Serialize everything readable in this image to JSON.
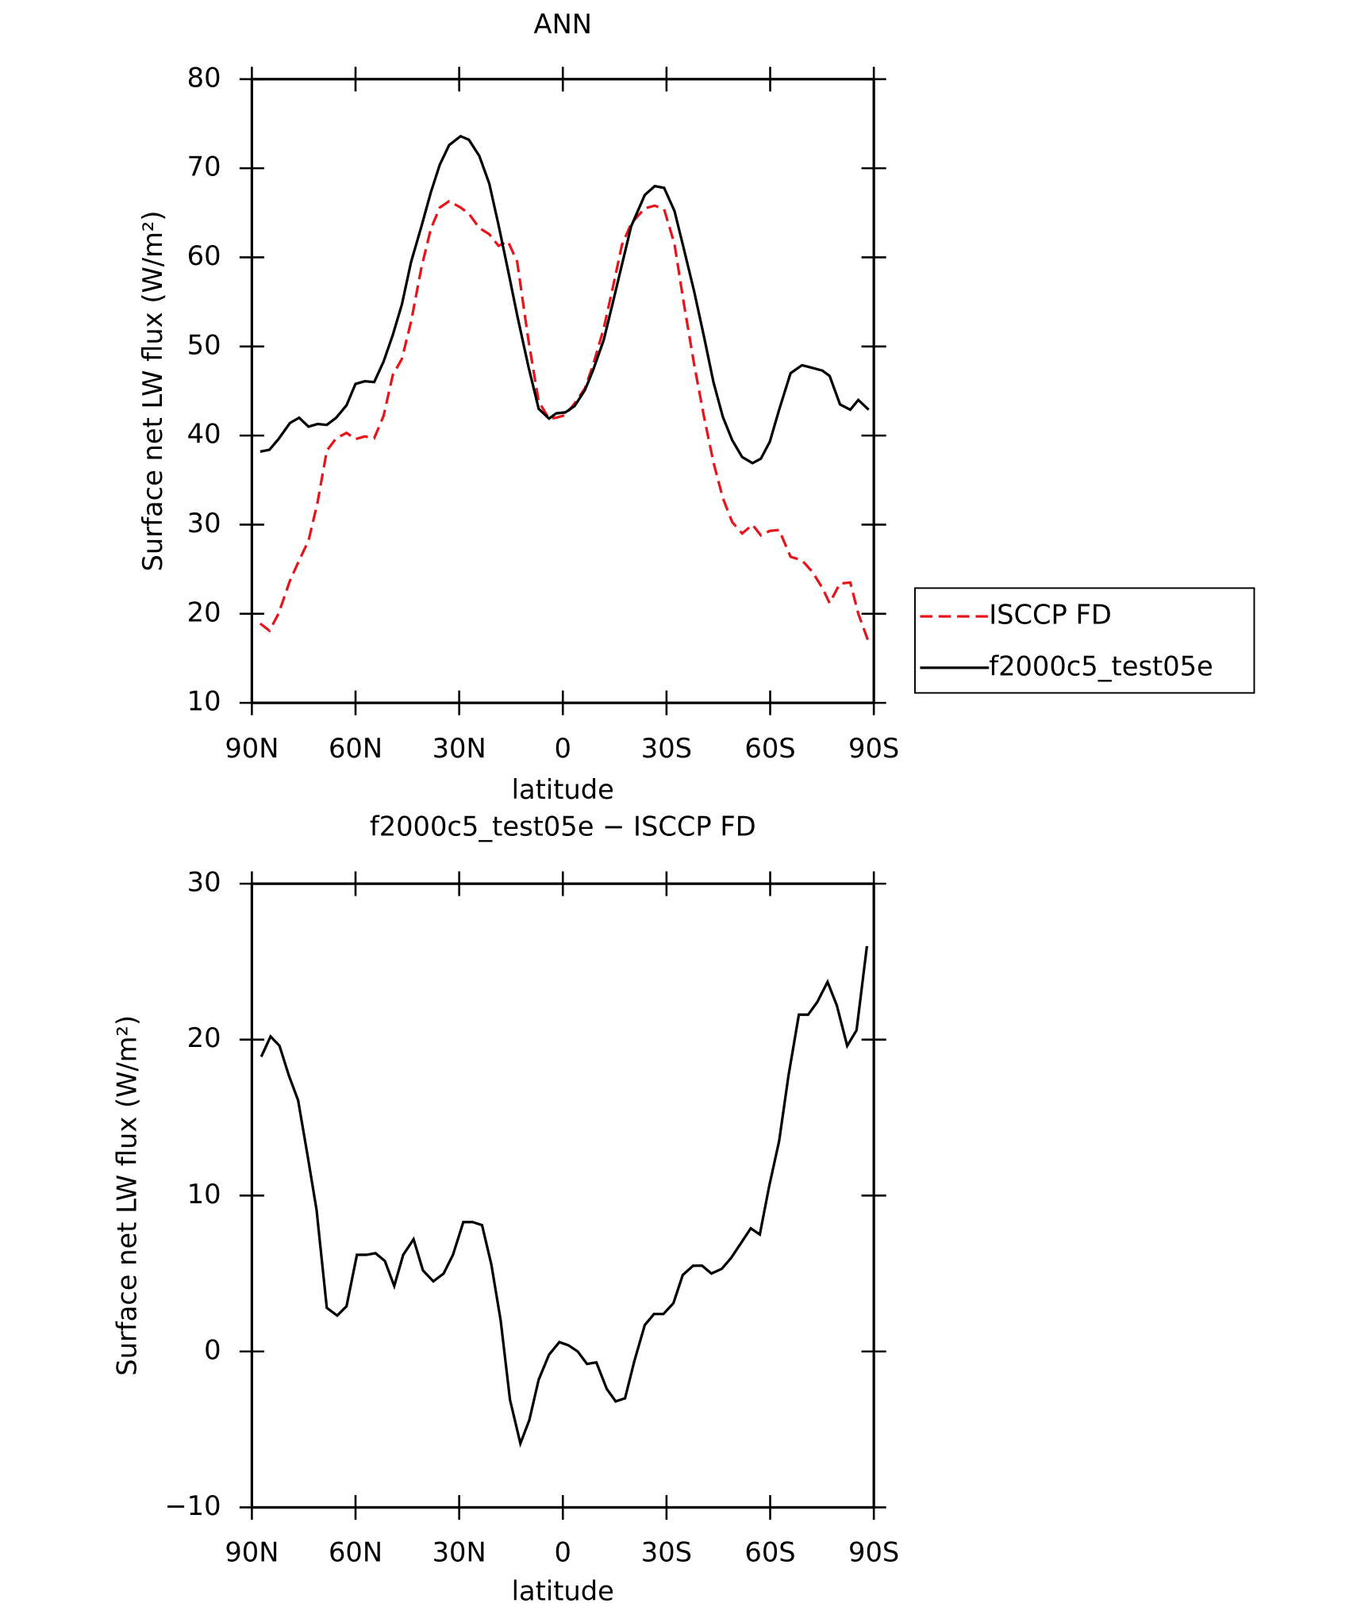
{
  "chart_data": [
    {
      "type": "line",
      "title": "ANN",
      "xlabel": "latitude",
      "ylabel": "Surface net LW flux (W/m²)",
      "xlim": [
        90,
        -90
      ],
      "ylim": [
        10,
        80
      ],
      "xticks": [
        {
          "value": 90,
          "label": "90N"
        },
        {
          "value": 60,
          "label": "60N"
        },
        {
          "value": 30,
          "label": "30N"
        },
        0,
        {
          "value": -30,
          "label": "30S"
        },
        {
          "value": -60,
          "label": "60S"
        },
        {
          "value": -90,
          "label": "90S"
        }
      ],
      "yticks": [
        10,
        20,
        30,
        40,
        50,
        60,
        70,
        80
      ],
      "legend": "right",
      "x": [
        87.6,
        84.9,
        82.3,
        79.0,
        76.3,
        73.6,
        71.0,
        68.3,
        65.6,
        62.6,
        60.0,
        57.3,
        54.6,
        51.9,
        49.2,
        46.6,
        43.9,
        40.9,
        38.2,
        35.6,
        32.9,
        29.6,
        27.2,
        24.2,
        21.3,
        18.6,
        15.9,
        13.2,
        10.0,
        7.0,
        4.0,
        1.9,
        -0.7,
        -3.4,
        -6.4,
        -8.8,
        -11.8,
        -14.4,
        -17.1,
        -19.8,
        -23.7,
        -26.6,
        -29.3,
        -32.3,
        -35.0,
        -38.0,
        -40.9,
        -43.6,
        -46.3,
        -49.0,
        -51.9,
        -54.9,
        -57.3,
        -59.9,
        -62.6,
        -65.9,
        -69.2,
        -72.2,
        -75.1,
        -77.2,
        -80.2,
        -83.2,
        -85.5,
        -88.5
      ],
      "series": [
        {
          "name": "ISCCP FD",
          "color": "#e8141b",
          "line_style": "dashed",
          "values": [
            18.9,
            18.1,
            20.0,
            23.7,
            26.0,
            28.2,
            32.5,
            38.3,
            39.7,
            40.3,
            39.6,
            39.9,
            39.7,
            42.2,
            46.8,
            48.6,
            52.8,
            58.9,
            63.2,
            65.6,
            66.3,
            65.6,
            64.9,
            63.3,
            62.6,
            61.3,
            61.8,
            59.5,
            50.8,
            43.8,
            41.9,
            42.0,
            42.3,
            43.6,
            45.3,
            48.0,
            52.0,
            56.5,
            61.4,
            63.8,
            65.5,
            65.8,
            65.4,
            61.5,
            54.9,
            48.0,
            42.0,
            37.0,
            33.0,
            30.3,
            29.0,
            30.0,
            28.8,
            29.3,
            29.4,
            26.4,
            26.0,
            24.7,
            22.9,
            21.2,
            23.4,
            23.5,
            20.0,
            16.8
          ]
        },
        {
          "name": "f2000c5_test05e",
          "color": "#000000",
          "line_style": "solid",
          "values": [
            38.2,
            38.4,
            39.6,
            41.4,
            42.0,
            41.0,
            41.3,
            41.2,
            42.0,
            43.4,
            45.8,
            46.1,
            46.0,
            48.3,
            51.3,
            54.7,
            59.5,
            63.5,
            67.3,
            70.4,
            72.6,
            73.6,
            73.2,
            71.4,
            68.3,
            63.6,
            58.6,
            53.5,
            47.8,
            43.0,
            41.9,
            42.5,
            42.6,
            43.3,
            45.1,
            47.4,
            50.7,
            54.8,
            59.2,
            63.5,
            67.0,
            68.0,
            67.8,
            65.2,
            61.0,
            56.2,
            51.0,
            46.0,
            42.1,
            39.5,
            37.6,
            36.9,
            37.4,
            39.3,
            42.9,
            47.0,
            47.9,
            47.6,
            47.3,
            46.7,
            43.5,
            42.9,
            44.0,
            42.9
          ]
        }
      ]
    },
    {
      "type": "line",
      "title": "f2000c5_test05e − ISCCP FD",
      "xlabel": "latitude",
      "ylabel": "Surface net LW flux (W/m²)",
      "xlim": [
        90,
        -90
      ],
      "ylim": [
        -10,
        30
      ],
      "xticks": [
        {
          "value": 90,
          "label": "90N"
        },
        {
          "value": 60,
          "label": "60N"
        },
        {
          "value": 30,
          "label": "30N"
        },
        0,
        {
          "value": -30,
          "label": "30S"
        },
        {
          "value": -60,
          "label": "60S"
        },
        {
          "value": -90,
          "label": "90S"
        }
      ],
      "yticks": [
        {
          "value": -10,
          "label": "−10"
        },
        0,
        10,
        20,
        30
      ],
      "x": [
        87.3,
        84.6,
        82.0,
        79.3,
        76.6,
        73.9,
        71.3,
        68.3,
        65.3,
        62.6,
        59.6,
        56.9,
        54.2,
        51.5,
        48.8,
        46.2,
        43.2,
        40.5,
        37.5,
        34.5,
        31.8,
        28.8,
        26.1,
        23.4,
        20.7,
        18.0,
        15.3,
        12.3,
        9.7,
        7.0,
        4.0,
        1.0,
        -1.6,
        -4.3,
        -7.0,
        -9.7,
        -12.7,
        -15.3,
        -18.0,
        -20.7,
        -23.7,
        -26.4,
        -29.1,
        -32.0,
        -34.7,
        -37.7,
        -40.3,
        -43.0,
        -46.0,
        -48.7,
        -51.4,
        -54.4,
        -57.0,
        -59.7,
        -62.6,
        -65.3,
        -68.3,
        -71.0,
        -73.6,
        -76.6,
        -79.3,
        -82.3,
        -85.0,
        -88.0
      ],
      "series": [
        {
          "color": "#000000",
          "line_style": "solid",
          "values": [
            18.9,
            20.2,
            19.6,
            17.7,
            16.1,
            12.6,
            9.1,
            2.8,
            2.3,
            2.9,
            6.2,
            6.2,
            6.3,
            5.8,
            4.2,
            6.2,
            7.2,
            5.2,
            4.5,
            5.0,
            6.2,
            8.3,
            8.3,
            8.1,
            5.6,
            2.0,
            -3.1,
            -5.9,
            -4.4,
            -1.8,
            -0.2,
            0.6,
            0.4,
            0.0,
            -0.8,
            -0.7,
            -2.4,
            -3.2,
            -3.0,
            -0.6,
            1.7,
            2.4,
            2.4,
            3.1,
            4.9,
            5.5,
            5.5,
            5.0,
            5.3,
            6.0,
            6.9,
            7.9,
            7.5,
            10.6,
            13.5,
            17.7,
            21.6,
            21.6,
            22.4,
            23.7,
            22.2,
            19.6,
            20.6,
            26.0
          ]
        }
      ]
    }
  ]
}
